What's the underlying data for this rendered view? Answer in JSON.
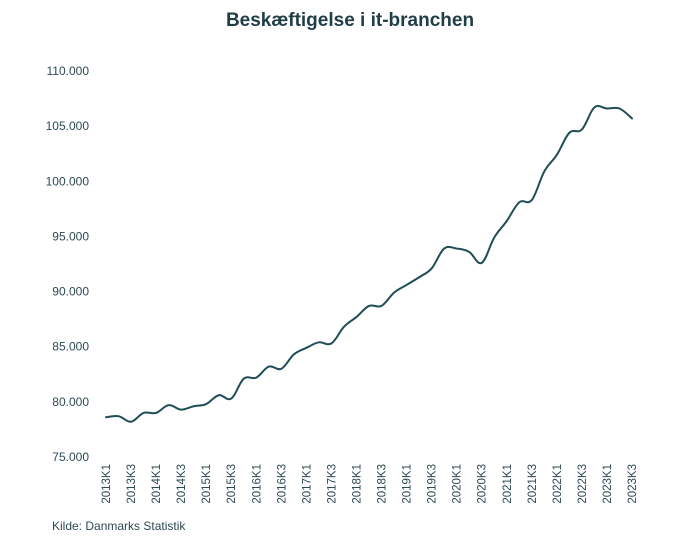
{
  "chart_data": {
    "type": "line",
    "title": "Beskæftigelse i it-branchen",
    "source": "Kilde: Danmarks Statistik",
    "xlabel": "",
    "ylabel": "",
    "ylim": [
      75000,
      110000
    ],
    "yticks": [
      "75.000",
      "80.000",
      "85.000",
      "90.000",
      "95.000",
      "100.000",
      "105.000",
      "110.000"
    ],
    "ytick_values": [
      75000,
      80000,
      85000,
      90000,
      95000,
      100000,
      105000,
      110000
    ],
    "categories": [
      "2013K1",
      "2013K2",
      "2013K3",
      "2013K4",
      "2014K1",
      "2014K2",
      "2014K3",
      "2014K4",
      "2015K1",
      "2015K2",
      "2015K3",
      "2015K4",
      "2016K1",
      "2016K2",
      "2016K3",
      "2016K4",
      "2017K1",
      "2017K2",
      "2017K3",
      "2017K4",
      "2018K1",
      "2018K2",
      "2018K3",
      "2018K4",
      "2019K1",
      "2019K2",
      "2019K3",
      "2019K4",
      "2020K1",
      "2020K2",
      "2020K3",
      "2020K4",
      "2021K1",
      "2021K2",
      "2021K3",
      "2021K4",
      "2022K1",
      "2022K2",
      "2022K3",
      "2022K4",
      "2023K1",
      "2023K2",
      "2023K3"
    ],
    "xtick_labels": [
      "2013K1",
      "2013K3",
      "2014K1",
      "2014K3",
      "2015K1",
      "2015K3",
      "2016K1",
      "2016K3",
      "2017K1",
      "2017K3",
      "2018K1",
      "2018K3",
      "2019K1",
      "2019K3",
      "2020K1",
      "2020K3",
      "2021K1",
      "2021K3",
      "2022K1",
      "2022K3",
      "2023K1",
      "2023K3"
    ],
    "series": [
      {
        "name": "Beskæftigelse i it-branchen",
        "color": "#1f4e57",
        "values": [
          78600,
          78700,
          78200,
          79000,
          79000,
          79700,
          79300,
          79600,
          79800,
          80600,
          80300,
          82100,
          82200,
          83200,
          83000,
          84300,
          84900,
          85400,
          85300,
          86800,
          87700,
          88700,
          88700,
          89900,
          90600,
          91300,
          92100,
          93900,
          93900,
          93600,
          92600,
          94900,
          96400,
          98100,
          98300,
          100900,
          102400,
          104400,
          104700,
          106700,
          106600,
          106600,
          105700
        ]
      }
    ]
  }
}
